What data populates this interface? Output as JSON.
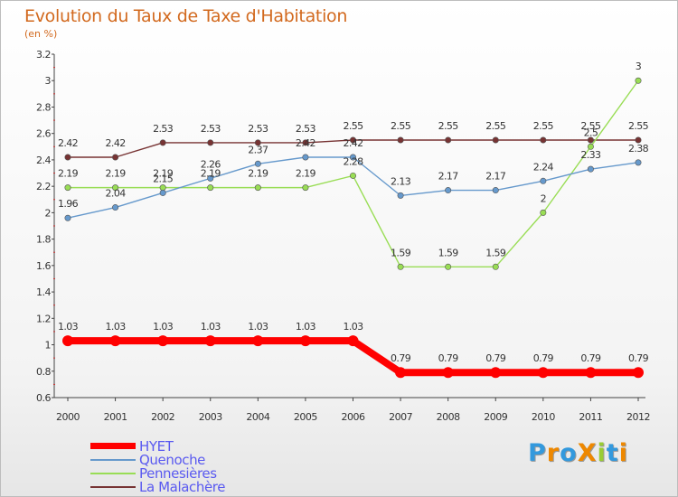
{
  "title": "Evolution du Taux de Taxe d'Habitation",
  "subtitle": "(en %)",
  "legend": [
    {
      "label": "HYET",
      "color": "#ff0000"
    },
    {
      "label": "Quenoche",
      "color": "#6699cc"
    },
    {
      "label": "Pennesières",
      "color": "#99dd55"
    },
    {
      "label": "La Malachère",
      "color": "#773333"
    }
  ],
  "logo": {
    "text": "ProXiti",
    "colors": [
      "#3399dd",
      "#ee8800",
      "#3399dd",
      "#ee8800",
      "#99cc33",
      "#3399dd",
      "#ee8800"
    ]
  },
  "chart_data": {
    "type": "line",
    "title": "Evolution du Taux de Taxe d'Habitation",
    "subtitle": "(en %)",
    "xlabel": "",
    "ylabel": "",
    "categories": [
      "2000",
      "2001",
      "2002",
      "2003",
      "2004",
      "2005",
      "2006",
      "2007",
      "2008",
      "2009",
      "2010",
      "2011",
      "2012"
    ],
    "ylim": [
      0.6,
      3.2
    ],
    "yticks": [
      "0.6",
      "0.8",
      "1",
      "1.2",
      "1.4",
      "1.6",
      "1.8",
      "2",
      "2.2",
      "2.4",
      "2.6",
      "2.8",
      "3",
      "3.2"
    ],
    "grid": false,
    "legend_position": "bottom-left",
    "series": [
      {
        "name": "HYET",
        "color": "#ff0000",
        "values": [
          1.03,
          1.03,
          1.03,
          1.03,
          1.03,
          1.03,
          1.03,
          0.79,
          0.79,
          0.79,
          0.79,
          0.79,
          0.79
        ],
        "labels": [
          "1.03",
          "1.03",
          "1.03",
          "1.03",
          "1.03",
          "1.03",
          "1.03",
          "0.79",
          "0.79",
          "0.79",
          "0.79",
          "0.79",
          "0.79"
        ]
      },
      {
        "name": "Quenoche",
        "color": "#6699cc",
        "values": [
          1.96,
          2.04,
          2.15,
          2.26,
          2.37,
          2.42,
          2.42,
          2.13,
          2.17,
          2.17,
          2.24,
          2.33,
          2.38
        ],
        "labels": [
          "1.96",
          "2.04",
          "2.15",
          "2.26",
          "2.37",
          "2.42",
          "2.42",
          "2.13",
          "2.17",
          "2.17",
          "2.24",
          "2.33",
          "2.38"
        ]
      },
      {
        "name": "Pennesières",
        "color": "#99dd55",
        "values": [
          2.19,
          2.19,
          2.19,
          2.19,
          2.19,
          2.19,
          2.28,
          1.59,
          1.59,
          1.59,
          2,
          2.5,
          3
        ],
        "labels": [
          "2.19",
          "2.19",
          "2.19",
          "2.19",
          "2.19",
          "2.19",
          "2.28",
          "1.59",
          "1.59",
          "1.59",
          "2",
          "2.5",
          "3"
        ]
      },
      {
        "name": "La Malachère",
        "color": "#773333",
        "values": [
          2.42,
          2.42,
          2.53,
          2.53,
          2.53,
          2.53,
          2.55,
          2.55,
          2.55,
          2.55,
          2.55,
          2.55,
          2.55
        ],
        "labels": [
          "2.42",
          "2.42",
          "2.53",
          "2.53",
          "2.53",
          "2.53",
          "2.55",
          "2.55",
          "2.55",
          "2.55",
          "2.55",
          "2.55",
          "2.55"
        ]
      }
    ]
  }
}
